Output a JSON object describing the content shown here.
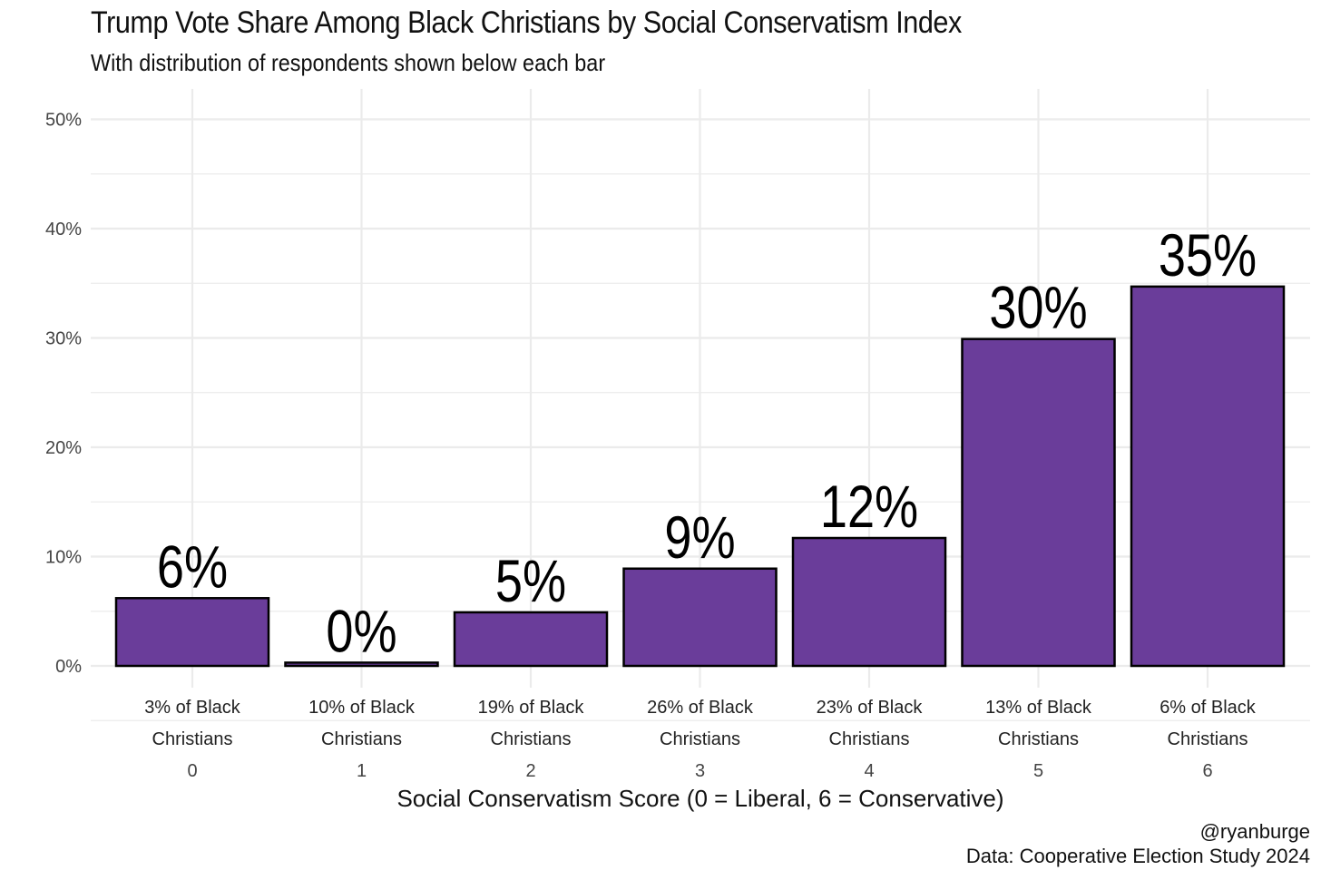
{
  "chart_data": {
    "type": "bar",
    "title": "Trump Vote Share Among Black Christians by Social Conservatism Index",
    "subtitle": "With distribution of respondents shown below each bar",
    "xlabel": "Social Conservatism Score (0 = Liberal, 6 = Conservative)",
    "ylabel": "",
    "categories": [
      "0",
      "1",
      "2",
      "3",
      "4",
      "5",
      "6"
    ],
    "values": [
      6.2,
      0.3,
      4.9,
      8.9,
      11.7,
      29.9,
      34.7
    ],
    "value_labels": [
      "6%",
      "0%",
      "5%",
      "9%",
      "12%",
      "30%",
      "35%"
    ],
    "distribution_labels": [
      [
        "3% of Black",
        "Christians"
      ],
      [
        "10% of Black",
        "Christians"
      ],
      [
        "19% of Black",
        "Christians"
      ],
      [
        "26% of Black",
        "Christians"
      ],
      [
        "23% of Black",
        "Christians"
      ],
      [
        "13% of Black",
        "Christians"
      ],
      [
        "6% of Black",
        "Christians"
      ]
    ],
    "yticks": [
      0,
      10,
      20,
      30,
      40,
      50
    ],
    "ytick_labels": [
      "0%",
      "10%",
      "20%",
      "30%",
      "40%",
      "50%"
    ],
    "ylim": [
      -5,
      52.5
    ],
    "grid": true,
    "colors": {
      "bar": "#6a3d9a",
      "bar_outline": "#000000",
      "grid": "#ebebeb"
    }
  },
  "caption": {
    "handle": "@ryanburge",
    "source": "Data: Cooperative Election Study 2024"
  }
}
